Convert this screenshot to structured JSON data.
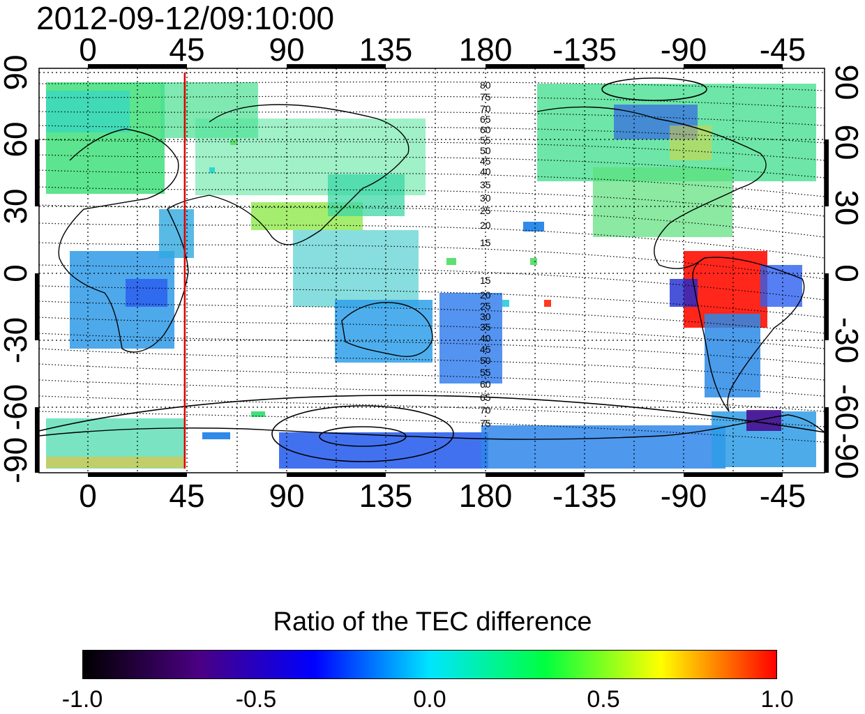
{
  "timestamp": "2012-09-12/09:10:00",
  "map": {
    "top_axis_labels": [
      "0",
      "45",
      "90",
      "135",
      "180",
      "-135",
      "-90",
      "-45"
    ],
    "bottom_axis_labels": [
      "0",
      "45",
      "90",
      "135",
      "180",
      "-135",
      "-90",
      "-45"
    ],
    "left_axis_labels": [
      "90",
      "60",
      "30",
      "0",
      "-30",
      "-60",
      "-90"
    ],
    "right_axis_labels": [
      "90",
      "60",
      "30",
      "0",
      "-30",
      "-60",
      "-90"
    ],
    "marker_line_longitude": 44,
    "marker_line_color": "#dd0000",
    "contour_labels_north": [
      "80",
      "75",
      "70",
      "65",
      "60",
      "55",
      "50",
      "45",
      "40",
      "35",
      "30",
      "25",
      "20",
      "15"
    ],
    "contour_labels_south": [
      "15",
      "20",
      "25",
      "30",
      "35",
      "40",
      "45",
      "50",
      "55",
      "60",
      "65",
      "70",
      "75"
    ]
  },
  "colorbar": {
    "title": "Ratio of the TEC difference",
    "tick_labels": [
      "-1.0",
      "-0.5",
      "0.0",
      "0.5",
      "1.0"
    ],
    "range": [
      -1.0,
      1.0
    ],
    "colors": [
      "#000000",
      "#4b0082",
      "#0000ff",
      "#00e5ff",
      "#00ff40",
      "#ffff00",
      "#ff0000"
    ]
  }
}
